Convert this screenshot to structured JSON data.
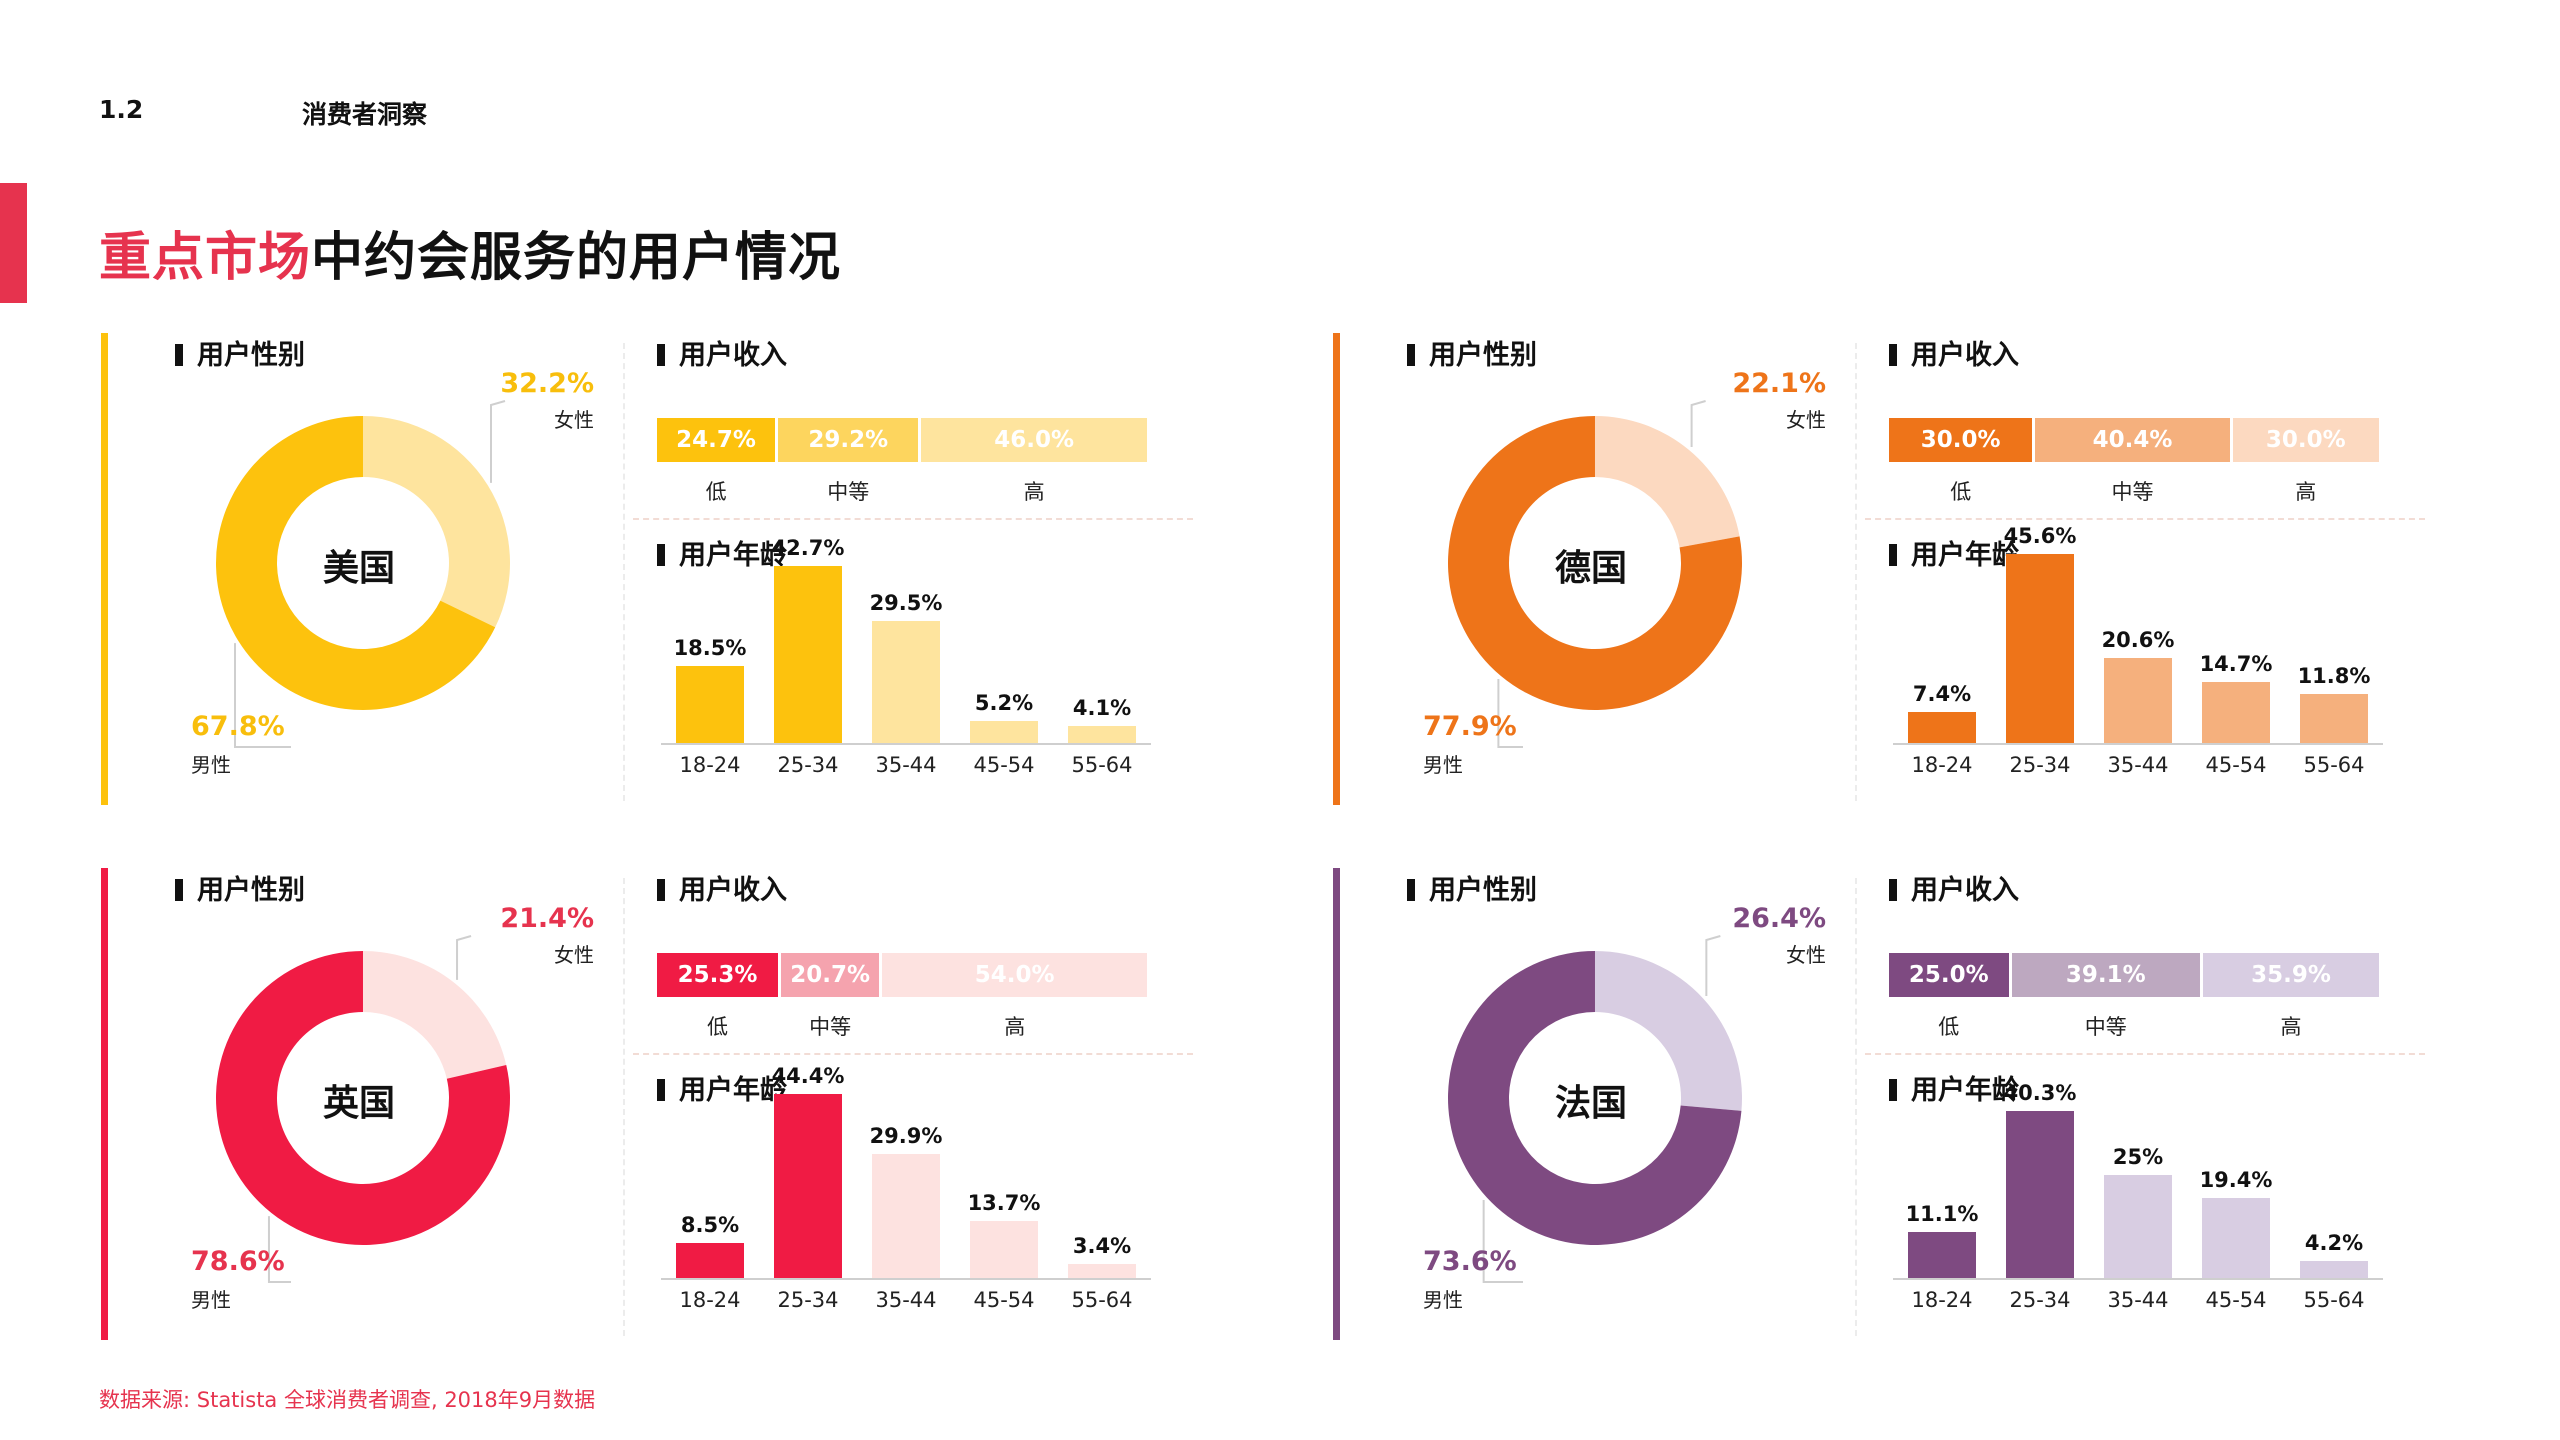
{
  "header": {
    "section_number": "1.2",
    "section_title": "消费者洞察"
  },
  "title": {
    "highlight": "重点市场",
    "rest": "中约会服务的用户情况"
  },
  "source": "数据来源: Statista 全球消费者调查, 2018年9月数据",
  "labels": {
    "gender_heading": "用户性别",
    "income_heading": "用户收入",
    "age_heading": "用户年龄",
    "female": "女性",
    "male": "男性"
  },
  "colors": {
    "accent_red": "#E6334E"
  },
  "chart_data": [
    {
      "country": "美国",
      "type": "pie",
      "colors": {
        "primary": "#FDC20D",
        "medium": "#FDD55E",
        "light": "#FEE49E",
        "text": "#F8BE0C"
      },
      "gender": {
        "female": 32.2,
        "male": 67.8,
        "female_label": "32.2%",
        "male_label": "67.8%"
      },
      "income": {
        "type": "bar",
        "categories": [
          "低",
          "中等",
          "高"
        ],
        "values": [
          24.7,
          29.2,
          46.0
        ],
        "labels": [
          "24.7%",
          "29.2%",
          "46.0%"
        ]
      },
      "age": {
        "type": "bar",
        "categories": [
          "18-24",
          "25-34",
          "35-44",
          "45-54",
          "55-64"
        ],
        "values": [
          18.5,
          42.7,
          29.5,
          5.2,
          4.1
        ],
        "labels": [
          "18.5%",
          "42.7%",
          "29.5%",
          "5.2%",
          "4.1%"
        ]
      }
    },
    {
      "country": "德国",
      "type": "pie",
      "colors": {
        "primary": "#EE7419",
        "medium": "#F5B07D",
        "light": "#FCD9C0",
        "text": "#EE7419"
      },
      "gender": {
        "female": 22.1,
        "male": 77.9,
        "female_label": "22.1%",
        "male_label": "77.9%"
      },
      "income": {
        "type": "bar",
        "categories": [
          "低",
          "中等",
          "高"
        ],
        "values": [
          30.0,
          40.4,
          30.0
        ],
        "labels": [
          "30.0%",
          "40.4%",
          "30.0%"
        ]
      },
      "age": {
        "type": "bar",
        "categories": [
          "18-24",
          "25-34",
          "35-44",
          "45-54",
          "55-64"
        ],
        "values": [
          7.4,
          45.6,
          20.6,
          14.7,
          11.8
        ],
        "labels": [
          "7.4%",
          "45.6%",
          "20.6%",
          "14.7%",
          "11.8%"
        ]
      }
    },
    {
      "country": "英国",
      "type": "pie",
      "colors": {
        "primary": "#F01B44",
        "medium": "#F5A3AE",
        "light": "#FDE2E0",
        "text": "#E6334E"
      },
      "gender": {
        "female": 21.4,
        "male": 78.6,
        "female_label": "21.4%",
        "male_label": "78.6%"
      },
      "income": {
        "type": "bar",
        "categories": [
          "低",
          "中等",
          "高"
        ],
        "values": [
          25.3,
          20.7,
          54.0
        ],
        "labels": [
          "25.3%",
          "20.7%",
          "54.0%"
        ]
      },
      "age": {
        "type": "bar",
        "categories": [
          "18-24",
          "25-34",
          "35-44",
          "45-54",
          "55-64"
        ],
        "values": [
          8.5,
          44.4,
          29.9,
          13.7,
          3.4
        ],
        "labels": [
          "8.5%",
          "44.4%",
          "29.9%",
          "13.7%",
          "3.4%"
        ]
      }
    },
    {
      "country": "法国",
      "type": "pie",
      "colors": {
        "primary": "#7E4A81",
        "medium": "#BDA8C0",
        "light": "#D8CDE2",
        "text": "#7E4A81"
      },
      "gender": {
        "female": 26.4,
        "male": 73.6,
        "female_label": "26.4%",
        "male_label": "73.6%"
      },
      "income": {
        "type": "bar",
        "categories": [
          "低",
          "中等",
          "高"
        ],
        "values": [
          25.0,
          39.1,
          35.9
        ],
        "labels": [
          "25.0%",
          "39.1%",
          "35.9%"
        ]
      },
      "age": {
        "type": "bar",
        "categories": [
          "18-24",
          "25-34",
          "35-44",
          "45-54",
          "55-64"
        ],
        "values": [
          11.1,
          40.3,
          25,
          19.4,
          4.2
        ],
        "labels": [
          "11.1%",
          "40.3%",
          "25%",
          "19.4%",
          "4.2%"
        ]
      }
    }
  ]
}
